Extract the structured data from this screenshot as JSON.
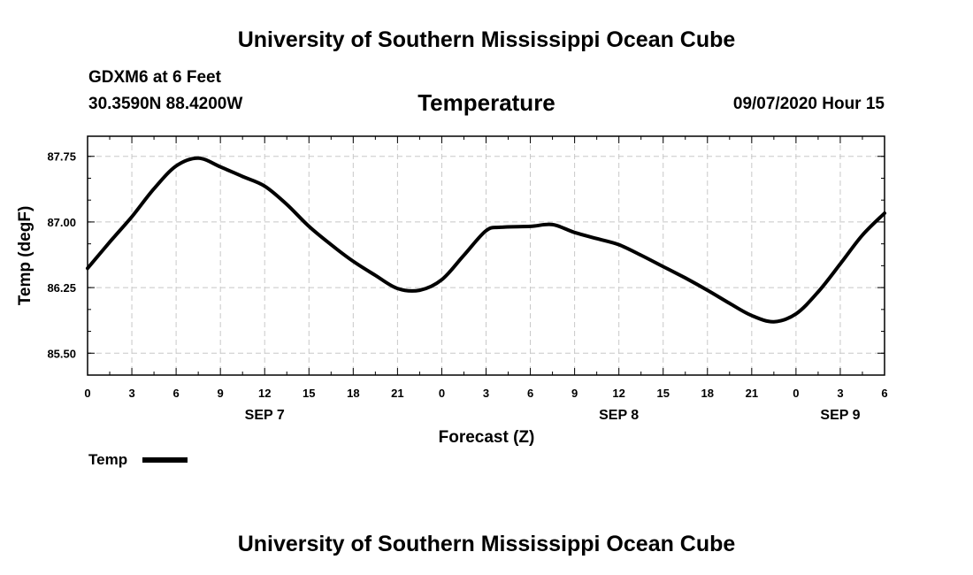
{
  "top_title": "University of Southern Mississippi Ocean Cube",
  "bottom_title": "University of Southern Mississippi Ocean Cube",
  "station": {
    "name": "GDXM6 at 6 Feet",
    "coords": "30.3590N 88.4200W"
  },
  "timestamp": "09/07/2020 Hour 15",
  "chart_data": {
    "type": "line",
    "title": "Temperature",
    "xlabel": "Forecast (Z)",
    "ylabel": "Temp (degF)",
    "x_range_hours": [
      0,
      54
    ],
    "ylim": [
      85.25,
      87.98
    ],
    "yticks": [
      85.5,
      86.25,
      87.0,
      87.75
    ],
    "ytick_labels": [
      "85.50",
      "86.25",
      "87.00",
      "87.75"
    ],
    "xtick_hours": [
      0,
      3,
      6,
      9,
      12,
      15,
      18,
      21,
      24,
      27,
      30,
      33,
      36,
      39,
      42,
      45,
      48,
      51,
      54
    ],
    "xtick_labels": [
      "0",
      "3",
      "6",
      "9",
      "12",
      "15",
      "18",
      "21",
      "0",
      "3",
      "6",
      "9",
      "12",
      "15",
      "18",
      "21",
      "0",
      "3",
      "6"
    ],
    "day_labels": [
      {
        "hour": 12,
        "label": "SEP 7"
      },
      {
        "hour": 36,
        "label": "SEP 8"
      },
      {
        "hour": 51,
        "label": "SEP 9"
      }
    ],
    "grid": true,
    "legend": {
      "position": "bottom-left"
    },
    "series": [
      {
        "name": "Temp",
        "x": [
          0,
          1.5,
          3,
          4.5,
          6,
          7.5,
          9,
          10.5,
          12,
          13.5,
          15,
          16.5,
          18,
          19.5,
          21,
          22.5,
          24,
          25.5,
          27,
          28,
          30,
          31.5,
          33,
          34.5,
          36,
          37.5,
          39,
          40.5,
          42,
          43.5,
          45,
          46.5,
          48,
          49.5,
          51,
          52.5,
          54
        ],
        "y": [
          86.47,
          86.77,
          87.06,
          87.38,
          87.64,
          87.73,
          87.63,
          87.52,
          87.41,
          87.2,
          86.95,
          86.74,
          86.55,
          86.39,
          86.24,
          86.22,
          86.34,
          86.62,
          86.9,
          86.94,
          86.95,
          86.97,
          86.88,
          86.81,
          86.74,
          86.62,
          86.49,
          86.36,
          86.22,
          86.07,
          85.93,
          85.86,
          85.95,
          86.2,
          86.52,
          86.85,
          87.1
        ]
      }
    ]
  }
}
